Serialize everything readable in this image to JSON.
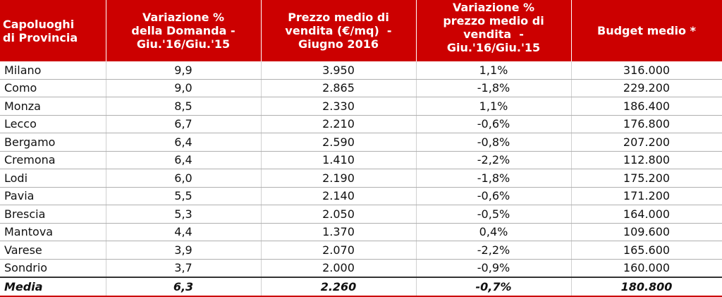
{
  "table": {
    "header": [
      [
        "Capoluoghi",
        "di Provincia"
      ],
      [
        "Variazione %",
        "della Domanda -",
        "Giu.'16/Giu.'15"
      ],
      [
        "Prezzo medio di",
        "vendita (€/mq)  -",
        "Giugno 2016"
      ],
      [
        "Variazione %",
        "prezzo medio di",
        "vendita  -",
        "Giu.'16/Giu.'15"
      ],
      [
        "Budget medio *"
      ]
    ],
    "rows": [
      [
        "Milano",
        "9,9",
        "3.950",
        "1,1%",
        "316.000"
      ],
      [
        "Como",
        "9,0",
        "2.865",
        "-1,8%",
        "229.200"
      ],
      [
        "Monza",
        "8,5",
        "2.330",
        "1,1%",
        "186.400"
      ],
      [
        "Lecco",
        "6,7",
        "2.210",
        "-0,6%",
        "176.800"
      ],
      [
        "Bergamo",
        "6,4",
        "2.590",
        "-0,8%",
        "207.200"
      ],
      [
        "Cremona",
        "6,4",
        "1.410",
        "-2,2%",
        "112.800"
      ],
      [
        "Lodi",
        "6,0",
        "2.190",
        "-1,8%",
        "175.200"
      ],
      [
        "Pavia",
        "5,5",
        "2.140",
        "-0,6%",
        "171.200"
      ],
      [
        "Brescia",
        "5,3",
        "2.050",
        "-0,5%",
        "164.000"
      ],
      [
        "Mantova",
        "4,4",
        "1.370",
        "0,4%",
        "109.600"
      ],
      [
        "Varese",
        "3,9",
        "2.070",
        "-2,2%",
        "165.600"
      ],
      [
        "Sondrio",
        "3,7",
        "2.000",
        "-0,9%",
        "160.000"
      ]
    ],
    "total": [
      "Media",
      "6,3",
      "2.260",
      "-0,7%",
      "180.800"
    ]
  }
}
